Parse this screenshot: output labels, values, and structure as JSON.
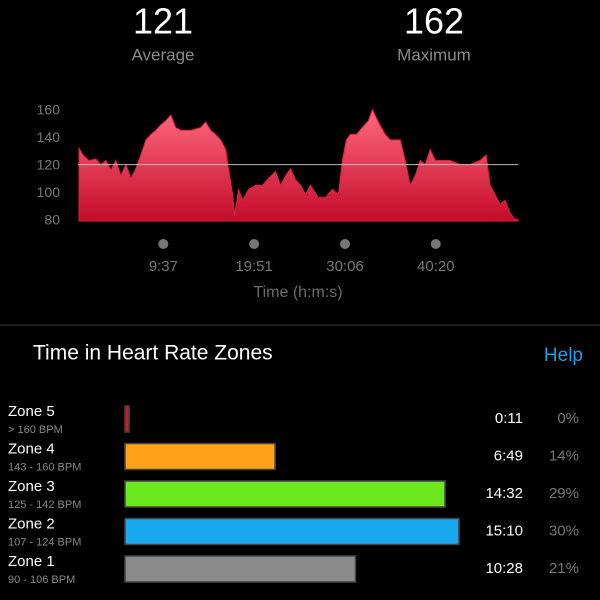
{
  "summary": [
    {
      "value": 121,
      "label": "Average"
    },
    {
      "value": 162,
      "label": "Maximum"
    }
  ],
  "chart_data": {
    "type": "area",
    "color": "#e0203e",
    "x": [
      7,
      34,
      74,
      121,
      155,
      189,
      223,
      256,
      290,
      324,
      358,
      391,
      425,
      459,
      493,
      526,
      560,
      594,
      628,
      661,
      695,
      763,
      830,
      864,
      897,
      931,
      965,
      999,
      1019,
      1046,
      1059,
      1086,
      1113,
      1154,
      1201,
      1248,
      1289,
      1336,
      1370,
      1404,
      1437,
      1471,
      1505,
      1539,
      1572,
      1626,
      1674,
      1721,
      1761,
      1788,
      1815,
      1842,
      1883,
      1923,
      1964,
      1991,
      2031,
      2078,
      2112,
      2146,
      2180,
      2213,
      2247,
      2281,
      2315,
      2348,
      2382,
      2416,
      2450,
      2517,
      2584,
      2652,
      2719,
      2760,
      2787,
      2821,
      2854,
      2888,
      2922,
      2956,
      2976
    ],
    "values": [
      133,
      128,
      124,
      125,
      121,
      124,
      117,
      124,
      113,
      121,
      111,
      118,
      128,
      139,
      143,
      146,
      150,
      153,
      157,
      148,
      146,
      146,
      148,
      152,
      146,
      143,
      139,
      132,
      117,
      99,
      84,
      103,
      95,
      103,
      106,
      106,
      111,
      116,
      106,
      113,
      118,
      110,
      106,
      99,
      106,
      97,
      97,
      103,
      99,
      124,
      139,
      143,
      143,
      148,
      153,
      161,
      152,
      143,
      139,
      139,
      139,
      124,
      106,
      113,
      124,
      121,
      132,
      124,
      124,
      124,
      121,
      121,
      124,
      128,
      106,
      99,
      92,
      95,
      86,
      81,
      81
    ],
    "xlim": [
      0,
      2976
    ],
    "ylim": [
      80,
      160
    ],
    "yticks": [
      80,
      100,
      120,
      140,
      160
    ],
    "xticks": [
      {
        "value": 577,
        "label": "9:37"
      },
      {
        "value": 1191,
        "label": "19:51"
      },
      {
        "value": 1806,
        "label": "30:06"
      },
      {
        "value": 2420,
        "label": "40:20"
      }
    ],
    "xlabel": "Time (h:m:s)"
  },
  "zones_title": "Time in Heart Rate Zones",
  "help": "Help",
  "zones": [
    {
      "name": "Zone 5",
      "range": "> 160 BPM",
      "color": "#e0102a",
      "time": {
        "value": 11,
        "label": "0:11"
      },
      "percent": {
        "value": 0,
        "label": "0%"
      }
    },
    {
      "name": "Zone 4",
      "range": "143 - 160 BPM",
      "color": "#ffa21a",
      "time": {
        "value": 409,
        "label": "6:49"
      },
      "percent": {
        "value": 14,
        "label": "14%"
      }
    },
    {
      "name": "Zone 3",
      "range": "125 - 142 BPM",
      "color": "#6ee81e",
      "time": {
        "value": 872,
        "label": "14:32"
      },
      "percent": {
        "value": 29,
        "label": "29%"
      }
    },
    {
      "name": "Zone 2",
      "range": "107 - 124 BPM",
      "color": "#18a8f0",
      "time": {
        "value": 910,
        "label": "15:10"
      },
      "percent": {
        "value": 30,
        "label": "30%"
      }
    },
    {
      "name": "Zone 1",
      "range": "90 - 106 BPM",
      "color": "#8a8a8a",
      "time": {
        "value": 628,
        "label": "10:28"
      },
      "percent": {
        "value": 21,
        "label": "21%"
      }
    }
  ]
}
